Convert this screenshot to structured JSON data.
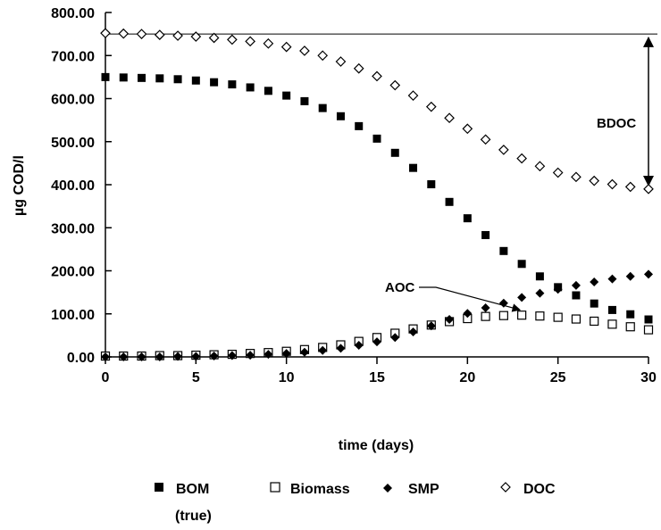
{
  "chart_data": {
    "type": "scatter",
    "title": "",
    "xlabel": "time (days)",
    "ylabel": "µg COD/l",
    "xlim": [
      0,
      30
    ],
    "ylim": [
      0,
      800
    ],
    "x_ticks": [
      "0",
      "5",
      "10",
      "15",
      "20",
      "25",
      "30"
    ],
    "y_ticks": [
      "0.00",
      "100.00",
      "200.00",
      "300.00",
      "400.00",
      "500.00",
      "600.00",
      "700.00",
      "800.00"
    ],
    "grid": false,
    "legend_position": "bottom",
    "series": [
      {
        "name": "BOM",
        "name_line2": "(true)",
        "marker": "filled-square",
        "color": "#000000",
        "x": [
          0,
          1,
          2,
          3,
          4,
          5,
          6,
          7,
          8,
          9,
          10,
          11,
          12,
          13,
          14,
          15,
          16,
          17,
          18,
          19,
          20,
          21,
          22,
          23,
          24,
          25,
          26,
          27,
          28,
          29,
          30
        ],
        "y": [
          650,
          649,
          648,
          647,
          645,
          642,
          638,
          633,
          626,
          618,
          607,
          594,
          578,
          559,
          536,
          507,
          474,
          439,
          401,
          360,
          322,
          283,
          246,
          216,
          187,
          162,
          143,
          124,
          109,
          99,
          87
        ]
      },
      {
        "name": "Biomass",
        "marker": "open-square",
        "color": "#000000",
        "x": [
          0,
          1,
          2,
          3,
          4,
          5,
          6,
          7,
          8,
          9,
          10,
          11,
          12,
          13,
          14,
          15,
          16,
          17,
          18,
          19,
          20,
          21,
          22,
          23,
          24,
          25,
          26,
          27,
          28,
          29,
          30
        ],
        "y": [
          2,
          2,
          2,
          3,
          3,
          4,
          5,
          6,
          8,
          10,
          13,
          17,
          22,
          28,
          36,
          45,
          55,
          65,
          74,
          82,
          89,
          94,
          96,
          97,
          95,
          92,
          88,
          83,
          76,
          70,
          63
        ]
      },
      {
        "name": "SMP",
        "marker": "filled-diamond",
        "color": "#000000",
        "x": [
          0,
          1,
          2,
          3,
          4,
          5,
          6,
          7,
          8,
          9,
          10,
          11,
          12,
          13,
          14,
          15,
          16,
          17,
          18,
          19,
          20,
          21,
          22,
          23,
          24,
          25,
          26,
          27,
          28,
          29,
          30
        ],
        "y": [
          0,
          0,
          0,
          0,
          1,
          1,
          2,
          3,
          4,
          6,
          8,
          11,
          15,
          20,
          27,
          35,
          45,
          58,
          72,
          87,
          101,
          114,
          125,
          138,
          148,
          157,
          166,
          174,
          181,
          187,
          192
        ]
      },
      {
        "name": "DOC",
        "marker": "open-diamond",
        "color": "#000000",
        "x": [
          0,
          1,
          2,
          3,
          4,
          5,
          6,
          7,
          8,
          9,
          10,
          11,
          12,
          13,
          14,
          15,
          16,
          17,
          18,
          19,
          20,
          21,
          22,
          23,
          24,
          25,
          26,
          27,
          28,
          29,
          30
        ],
        "y": [
          752,
          751,
          750,
          748,
          746,
          744,
          741,
          737,
          733,
          728,
          720,
          711,
          700,
          686,
          670,
          652,
          631,
          607,
          581,
          555,
          530,
          505,
          481,
          461,
          443,
          428,
          418,
          409,
          401,
          395,
          390
        ]
      }
    ],
    "annotations": [
      {
        "text": "BDOC",
        "type": "double-arrow",
        "x": 30,
        "y_from": 390,
        "y_to": 750
      },
      {
        "text": "AOC",
        "type": "arrow",
        "target_x": 23,
        "target_y": 97
      }
    ],
    "reference_line": {
      "y": 750
    }
  }
}
